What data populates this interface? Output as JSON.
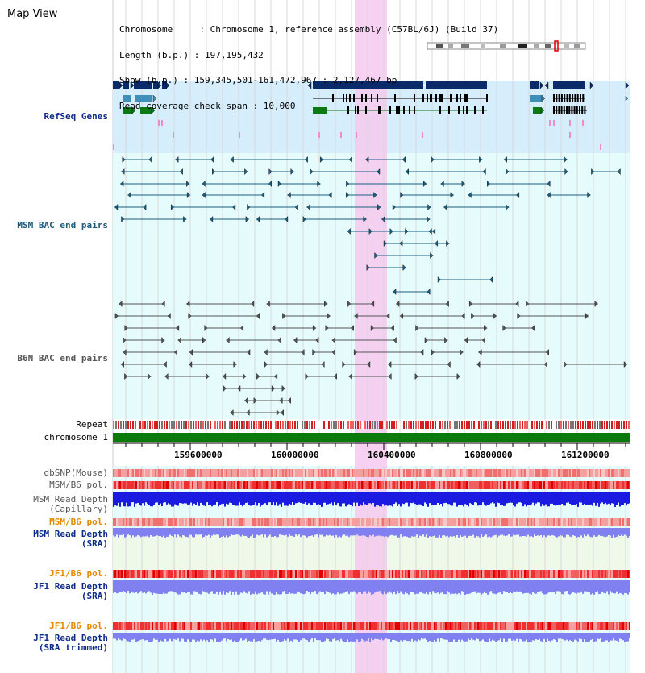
{
  "page": {
    "title": "Map View",
    "info": [
      "Chromosome     : Chromosome 1, reference assembly (C57BL/6J) (Build 37)",
      "Length (b.p.) : 197,195,432",
      "Show (b.p.) : 159,345,501-161,472,967 : 2,127,467 bp",
      "Read coverage check span : 10,000"
    ]
  },
  "colors": {
    "refseq_bg": "#d6eefb",
    "track_bg": "#e6fbfb",
    "highlight": "#f6c9ef",
    "gene_dark": "#0b2a6a",
    "gene_mid": "#3f8fb8",
    "gene_green": "#0b7a12",
    "msm_bac": "#1b5f80",
    "b6n_bac": "#555555",
    "chromosome": "#0a7a0a",
    "depth_blue": "#1a1ae0",
    "depth_light": "#8080f0",
    "pol_red": "#f05050"
  },
  "tracks": {
    "refseq": "RefSeq Genes",
    "msm_bac": "MSM BAC end pairs",
    "b6n_bac": "B6N BAC end pairs",
    "repeat": "Repeat",
    "chromosome": "chromosome 1",
    "dbsnp": "dbSNP(Mouse)",
    "msm_b6_pol_1": "MSM/B6 pol.",
    "msm_depth_cap_1": "MSM Read Depth",
    "msm_depth_cap_2": "(Capillary)",
    "msm_b6_pol_2": "MSM/B6 pol.",
    "msm_depth_sra_1": "MSM Read Depth",
    "msm_depth_sra_2": "(SRA)",
    "jf1_pol_1": "JF1/B6 pol.",
    "jf1_depth_1": "JF1 Read Depth",
    "jf1_depth_2": "(SRA)",
    "jf1_pol_2": "JF1/B6 pol.",
    "jf1_trim_1": "JF1 Read Depth",
    "jf1_trim_2": "(SRA trimmed)"
  },
  "ruler": {
    "ticks": [
      "159600000",
      "160000000",
      "160400000",
      "160800000",
      "161200000"
    ]
  }
}
